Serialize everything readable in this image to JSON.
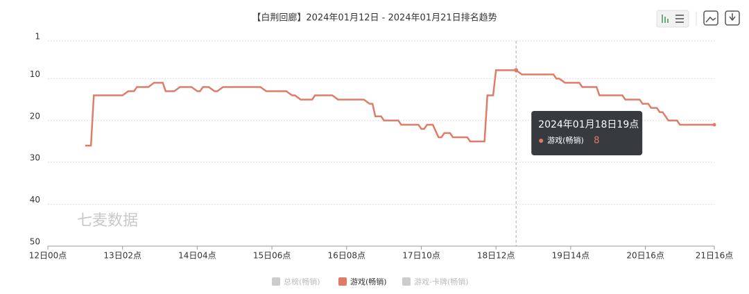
{
  "chart_data": {
    "type": "line",
    "title": "【白荆回廊】2024年01月12日 - 2024年01月21日排名趋势",
    "watermark": "七麦数据",
    "x": [
      13,
      15,
      16,
      26,
      28,
      30,
      31,
      35,
      37,
      40,
      41,
      44,
      46,
      50,
      52,
      53,
      54,
      56,
      58,
      59,
      61,
      74,
      76,
      83,
      85,
      86,
      88,
      92,
      93,
      99,
      101,
      110,
      112,
      113,
      114,
      116,
      117,
      122,
      123,
      129,
      130,
      131,
      132,
      134,
      136,
      137,
      138,
      140,
      141,
      146,
      147,
      152,
      153,
      155,
      156,
      163,
      165,
      176,
      177,
      178,
      180,
      185,
      186,
      191,
      192,
      200,
      201,
      206,
      207,
      209,
      210,
      212,
      213,
      214,
      216,
      219,
      220,
      232
    ],
    "series": [
      {
        "color": "#e07b67",
        "values": [
          26,
          26,
          14,
          14,
          13,
          13,
          12,
          12,
          11,
          11,
          13,
          13,
          12,
          12,
          13,
          13,
          12,
          12,
          13,
          13,
          12,
          12,
          13,
          13,
          14,
          14,
          15,
          15,
          14,
          14,
          15,
          15,
          16,
          16,
          19,
          19,
          20,
          20,
          21,
          21,
          22,
          22,
          21,
          21,
          24,
          24,
          23,
          23,
          24,
          24,
          25,
          25,
          14,
          14,
          8,
          8,
          9,
          9,
          10,
          10,
          11,
          11,
          12,
          12,
          14,
          14,
          15,
          15,
          16,
          16,
          17,
          17,
          18,
          18,
          20,
          20,
          21,
          21
        ]
      }
    ],
    "legend": [
      {
        "name": "总榜(畅销)",
        "color": "#cccccc"
      },
      {
        "name": "游戏(畅销)",
        "color": "#e07b67"
      },
      {
        "name": "游戏-卡牌(畅销)",
        "color": "#cccccc"
      }
    ],
    "xlim": [
      0,
      232
    ],
    "xticks": [
      {
        "value": 0,
        "label": "12日00点"
      },
      {
        "value": 26,
        "label": "13日02点"
      },
      {
        "value": 52,
        "label": "14日04点"
      },
      {
        "value": 78,
        "label": "15日06点"
      },
      {
        "value": 104,
        "label": "16日08点"
      },
      {
        "value": 130,
        "label": "17日10点"
      },
      {
        "value": 156,
        "label": "18日12点"
      },
      {
        "value": 182,
        "label": "19日14点"
      },
      {
        "value": 208,
        "label": "20日16点"
      },
      {
        "value": 232,
        "label": "21日16点"
      }
    ],
    "ylim": [
      50,
      1
    ],
    "yticks": [
      1,
      10,
      20,
      30,
      40,
      50
    ],
    "grid": true,
    "tooltip": {
      "title": "2024年01月18日19点"
    }
  }
}
